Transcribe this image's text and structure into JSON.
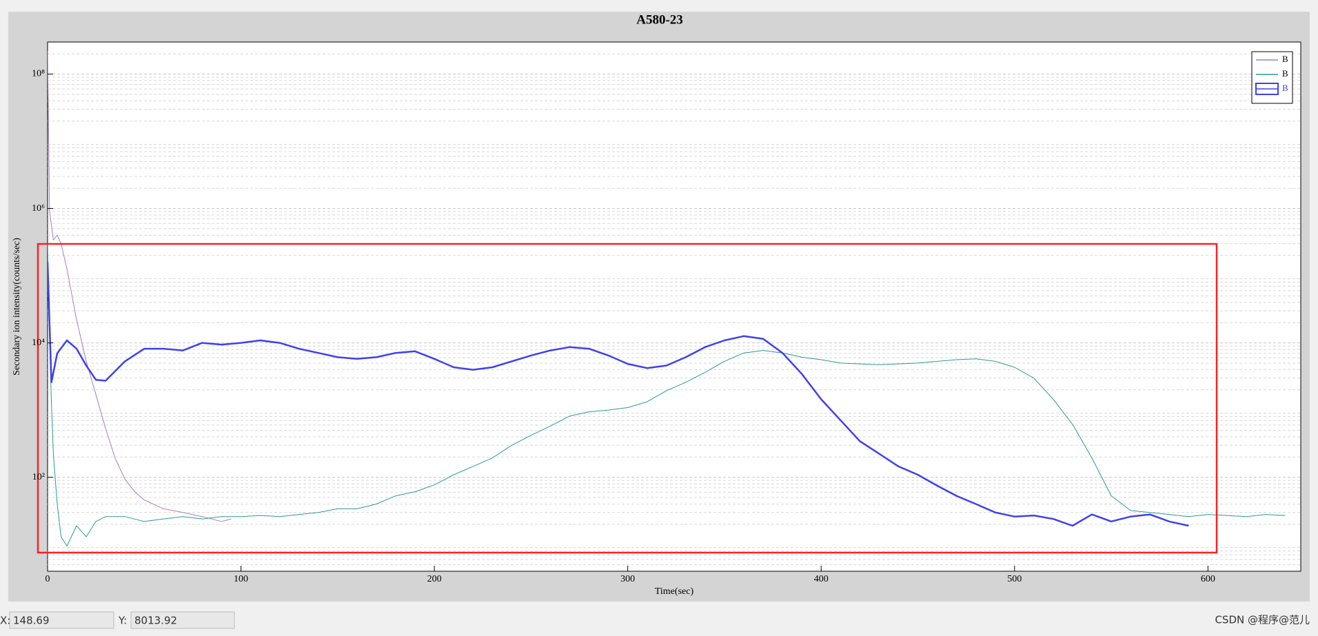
{
  "chart_data": {
    "type": "line",
    "title": "A580-23",
    "x_label": "Time(sec)",
    "y_label": "Secondary ion intensity(counts/sec)",
    "log_y": true,
    "grid": true,
    "legend": "upper right",
    "xlim": [
      0,
      648
    ],
    "xticks": [
      0,
      100,
      200,
      300,
      400,
      500,
      600
    ],
    "ylim": [
      4,
      300000000
    ],
    "yticks": [
      {
        "value": 100,
        "label": "10²"
      },
      {
        "value": 10000,
        "label": "10⁴"
      },
      {
        "value": 1000000,
        "label": "10⁶"
      },
      {
        "value": 100000000,
        "label": "10⁸"
      }
    ],
    "series": [
      {
        "name": "B",
        "color": "#a27cc0",
        "width": 1,
        "x": [
          0,
          1,
          3,
          5,
          7,
          10,
          15,
          20,
          25,
          30,
          35,
          40,
          45,
          50,
          60,
          70,
          80,
          90,
          95
        ],
        "values": [
          220000000,
          940000,
          340000,
          400000,
          300000,
          126000,
          22000,
          5300,
          1700,
          530,
          190,
          94,
          61,
          46,
          34,
          30,
          26,
          22,
          24
        ]
      },
      {
        "name": "B",
        "color": "#2a9a92",
        "width": 1,
        "x": [
          0,
          1,
          2,
          3,
          5,
          7,
          10,
          15,
          20,
          25,
          30,
          40,
          50,
          60,
          70,
          80,
          90,
          100,
          110,
          120,
          130,
          140,
          150,
          160,
          170,
          180,
          190,
          200,
          210,
          220,
          230,
          240,
          250,
          260,
          270,
          280,
          290,
          300,
          310,
          320,
          330,
          340,
          350,
          360,
          370,
          380,
          390,
          400,
          410,
          420,
          430,
          440,
          450,
          460,
          470,
          480,
          490,
          500,
          510,
          520,
          530,
          540,
          550,
          560,
          570,
          580,
          590,
          600,
          610,
          620,
          630,
          640
        ],
        "values": [
          300000,
          12600,
          1260,
          224,
          40,
          13,
          9.5,
          19,
          13,
          22,
          26,
          26,
          22,
          24,
          26,
          24,
          26,
          26,
          27,
          26,
          28,
          30,
          34,
          34,
          40,
          53,
          61,
          77,
          109,
          145,
          194,
          299,
          422,
          579,
          818,
          944,
          1000,
          1090,
          1330,
          1940,
          2590,
          3650,
          5310,
          7080,
          7720,
          7080,
          6130,
          5620,
          5010,
          4870,
          4730,
          4870,
          5010,
          5310,
          5620,
          5790,
          5310,
          4340,
          2990,
          1450,
          613,
          194,
          53,
          32,
          30,
          28,
          26,
          28,
          27,
          26,
          28,
          27
        ]
      },
      {
        "name": "B",
        "color": "#3f3ff0",
        "width": 2.5,
        "x": [
          0,
          2,
          5,
          10,
          15,
          20,
          25,
          30,
          40,
          50,
          60,
          70,
          80,
          90,
          100,
          110,
          120,
          130,
          140,
          150,
          160,
          170,
          180,
          190,
          200,
          210,
          220,
          230,
          240,
          250,
          260,
          270,
          280,
          290,
          300,
          310,
          320,
          330,
          340,
          350,
          360,
          370,
          380,
          390,
          400,
          410,
          420,
          430,
          440,
          450,
          460,
          470,
          480,
          490,
          500,
          510,
          520,
          530,
          540,
          550,
          560,
          570,
          580,
          590
        ],
        "values": [
          160000,
          2600,
          7000,
          10900,
          8180,
          4600,
          2820,
          2740,
          5310,
          8180,
          8180,
          7720,
          10000,
          9440,
          10000,
          10900,
          10000,
          8180,
          7080,
          6130,
          5790,
          6130,
          7080,
          7500,
          5790,
          4340,
          3980,
          4340,
          5310,
          6490,
          7720,
          8660,
          8180,
          6490,
          4870,
          4220,
          4600,
          6130,
          8660,
          10900,
          12600,
          11500,
          7080,
          3450,
          1450,
          708,
          345,
          224,
          145,
          109,
          75,
          53,
          40,
          30,
          26,
          27,
          24,
          19,
          28,
          22,
          26,
          28,
          22,
          19
        ]
      }
    ]
  },
  "status_bar": {
    "x_label": "X:",
    "x_value": "148.69",
    "y_label": "Y:",
    "y_value": "8013.92"
  },
  "watermark": "CSDN @程序@范儿"
}
